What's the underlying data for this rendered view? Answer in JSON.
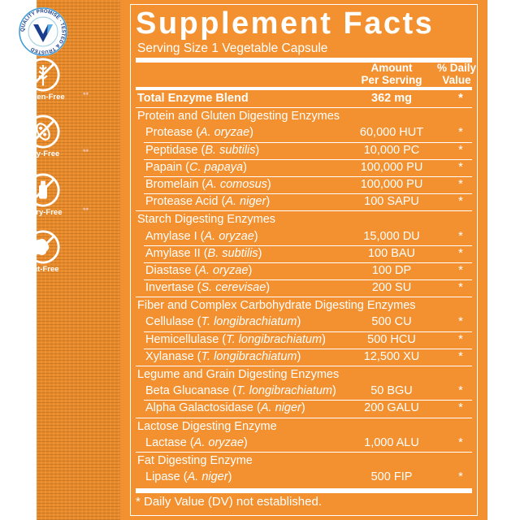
{
  "badges": [
    {
      "label": "",
      "icon": "quality-promise-seal",
      "text": "QUALITY PROMISE · TESTED & TRUSTED"
    },
    {
      "label": "Gluten-Free",
      "icon": "no-wheat-icon",
      "mark": "**"
    },
    {
      "label": "Soy-Free",
      "icon": "no-soy-icon",
      "mark": "**"
    },
    {
      "label": "Dairy-Free",
      "icon": "no-dairy-icon",
      "mark": "**"
    },
    {
      "label": "Nut-Free",
      "icon": "no-nut-icon",
      "mark": ""
    }
  ],
  "facts": {
    "title": "Supplement Facts",
    "serving": "Serving Size 1 Vegetable Capsule",
    "header_amount_1": "Amount",
    "header_amount_2": "Per Serving",
    "header_dv_1": "% Daily",
    "header_dv_2": "Value",
    "rows": [
      {
        "type": "total",
        "name": "Total Enzyme Blend",
        "amount": "362 mg",
        "dv": "*"
      },
      {
        "type": "group",
        "name": "Protein and Gluten Digesting Enzymes"
      },
      {
        "type": "item",
        "name": "Protease (",
        "latin": "A. oryzae",
        "close": ")",
        "amount": "60,000 HUT",
        "dv": "*"
      },
      {
        "type": "item",
        "name": "Peptidase (",
        "latin": "B. subtilis",
        "close": ")",
        "amount": "10,000 PC",
        "dv": "*"
      },
      {
        "type": "item",
        "name": "Papain (",
        "latin": "C. papaya",
        "close": ")",
        "amount": "100,000 PU",
        "dv": "*"
      },
      {
        "type": "item",
        "name": "Bromelain (",
        "latin": "A. comosus",
        "close": ")",
        "amount": "100,000 PU",
        "dv": "*"
      },
      {
        "type": "item",
        "name": "Protease Acid (",
        "latin": "A. niger",
        "close": ")",
        "amount": "100 SAPU",
        "dv": "*"
      },
      {
        "type": "group",
        "name": "Starch Digesting Enzymes"
      },
      {
        "type": "item",
        "name": "Amylase I (",
        "latin": "A. oryzae",
        "close": ")",
        "amount": "15,000 DU",
        "dv": "*"
      },
      {
        "type": "item",
        "name": "Amylase II (",
        "latin": "B. subtilis",
        "close": ")",
        "amount": "100 BAU",
        "dv": "*"
      },
      {
        "type": "item",
        "name": "Diastase (",
        "latin": "A. oryzae",
        "close": ")",
        "amount": "100 DP",
        "dv": "*"
      },
      {
        "type": "item",
        "name": "Invertase (",
        "latin": "S. cerevisae",
        "close": ")",
        "amount": "200 SU",
        "dv": "*"
      },
      {
        "type": "group",
        "name": "Fiber and Complex Carbohydrate Digesting Enzymes"
      },
      {
        "type": "item",
        "name": "Cellulase (",
        "latin": "T. longibrachiatum",
        "close": ")",
        "amount": "500 CU",
        "dv": "*"
      },
      {
        "type": "item",
        "name": "Hemicellulase (",
        "latin": "T. longibrachiatum",
        "close": ")",
        "amount": "500 HCU",
        "dv": "*"
      },
      {
        "type": "item",
        "name": "Xylanase (",
        "latin": "T. longibrachiatum",
        "close": ")",
        "amount": "12,500 XU",
        "dv": "*"
      },
      {
        "type": "group",
        "name": "Legume and Grain Digesting Enzymes"
      },
      {
        "type": "item",
        "name": "Beta Glucanase (",
        "latin": "T. longibrachiatum",
        "close": ")",
        "amount": "50 BGU",
        "dv": "*"
      },
      {
        "type": "item",
        "name": "Alpha Galactosidase (",
        "latin": "A. niger",
        "close": ")",
        "amount": "200 GALU",
        "dv": "*"
      },
      {
        "type": "group",
        "name": "Lactose Digesting Enzyme"
      },
      {
        "type": "item",
        "name": "Lactase (",
        "latin": "A. oryzae",
        "close": ")",
        "amount": "1,000 ALU",
        "dv": "*"
      },
      {
        "type": "group",
        "name": "Fat Digesting Enzyme"
      },
      {
        "type": "item",
        "name": "Lipase (",
        "latin": "A. niger",
        "close": ")",
        "amount": "500 FIP",
        "dv": "*"
      }
    ],
    "footnote": "* Daily Value (DV) not established."
  },
  "colors": {
    "orange": "#F39130",
    "strip": "#E8892A",
    "seal_blue": "#1B3E8C"
  }
}
